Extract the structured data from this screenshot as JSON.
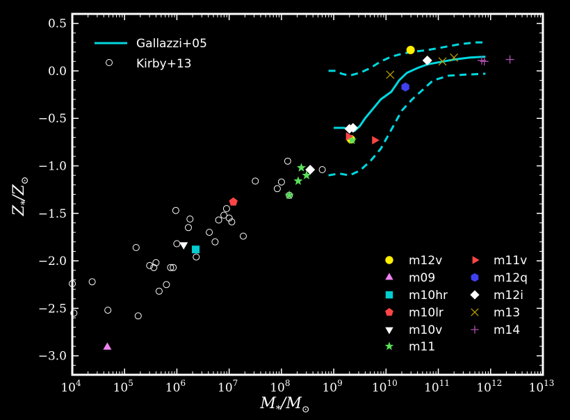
{
  "chart_data": {
    "type": "scatter",
    "xlabel_main": "M",
    "xlabel_sub": "*",
    "xlabel_slash": "/M",
    "xlabel_sun": "⊙",
    "ylabel_main": "Z",
    "ylabel_sub": "*",
    "ylabel_slash": "/Z",
    "ylabel_sun": "⊙",
    "x_scale": "log",
    "xlim": [
      10000.0,
      10000000000000.0
    ],
    "ylim": [
      -3.2,
      0.6
    ],
    "x_ticks": [
      {
        "exp": 4,
        "base": "10",
        "sup": "4"
      },
      {
        "exp": 5,
        "base": "10",
        "sup": "5"
      },
      {
        "exp": 6,
        "base": "10",
        "sup": "6"
      },
      {
        "exp": 7,
        "base": "10",
        "sup": "7"
      },
      {
        "exp": 8,
        "base": "10",
        "sup": "8"
      },
      {
        "exp": 9,
        "base": "10",
        "sup": "9"
      },
      {
        "exp": 10,
        "base": "10",
        "sup": "10"
      },
      {
        "exp": 11,
        "base": "10",
        "sup": "11"
      },
      {
        "exp": 12,
        "base": "10",
        "sup": "12"
      },
      {
        "exp": 13,
        "base": "10",
        "sup": "13"
      }
    ],
    "y_ticks": [
      {
        "v": 0.5,
        "label": "0.5"
      },
      {
        "v": 0.0,
        "label": "0.0"
      },
      {
        "v": -0.5,
        "label": "−0.5"
      },
      {
        "v": -1.0,
        "label": "−1.0"
      },
      {
        "v": -1.5,
        "label": "−1.5"
      },
      {
        "v": -2.0,
        "label": "−2.0"
      },
      {
        "v": -2.5,
        "label": "−2.5"
      },
      {
        "v": -3.0,
        "label": "−3.0"
      }
    ],
    "grid": false,
    "gallazzi": {
      "name": "Gallazzi+05",
      "color": "#00d8e0",
      "median": [
        [
          9.0,
          -0.6
        ],
        [
          9.2,
          -0.6
        ],
        [
          9.3,
          -0.62
        ],
        [
          9.4,
          -0.63
        ],
        [
          9.5,
          -0.58
        ],
        [
          9.6,
          -0.5
        ],
        [
          9.75,
          -0.4
        ],
        [
          9.9,
          -0.3
        ],
        [
          10.1,
          -0.22
        ],
        [
          10.25,
          -0.1
        ],
        [
          10.4,
          -0.02
        ],
        [
          10.6,
          0.03
        ],
        [
          10.8,
          0.07
        ],
        [
          11.0,
          0.09
        ],
        [
          11.3,
          0.12
        ],
        [
          11.6,
          0.14
        ],
        [
          11.9,
          0.15
        ]
      ],
      "upper": [
        [
          8.9,
          0.0
        ],
        [
          9.05,
          0.0
        ],
        [
          9.15,
          -0.03
        ],
        [
          9.3,
          -0.05
        ],
        [
          9.5,
          -0.02
        ],
        [
          9.7,
          0.03
        ],
        [
          9.9,
          0.1
        ],
        [
          10.1,
          0.15
        ],
        [
          10.3,
          0.18
        ],
        [
          10.5,
          0.2
        ],
        [
          10.8,
          0.22
        ],
        [
          11.1,
          0.25
        ],
        [
          11.4,
          0.28
        ],
        [
          11.7,
          0.3
        ],
        [
          11.9,
          0.3
        ]
      ],
      "lower": [
        [
          8.9,
          -1.1
        ],
        [
          9.1,
          -1.08
        ],
        [
          9.3,
          -1.1
        ],
        [
          9.5,
          -1.05
        ],
        [
          9.7,
          -0.95
        ],
        [
          9.9,
          -0.82
        ],
        [
          10.1,
          -0.62
        ],
        [
          10.3,
          -0.42
        ],
        [
          10.5,
          -0.3
        ],
        [
          10.7,
          -0.2
        ],
        [
          10.9,
          -0.1
        ],
        [
          11.2,
          -0.05
        ],
        [
          11.5,
          -0.04
        ],
        [
          11.9,
          -0.03
        ]
      ]
    },
    "kirby": {
      "name": "Kirby+13",
      "points": [
        [
          4.0,
          -2.24
        ],
        [
          4.03,
          -2.55
        ],
        [
          4.38,
          -2.22
        ],
        [
          4.68,
          -2.52
        ],
        [
          5.22,
          -1.86
        ],
        [
          5.26,
          -2.58
        ],
        [
          5.48,
          -2.05
        ],
        [
          5.56,
          -2.07
        ],
        [
          5.6,
          -2.02
        ],
        [
          5.66,
          -2.32
        ],
        [
          5.8,
          -2.25
        ],
        [
          5.88,
          -2.07
        ],
        [
          5.93,
          -2.07
        ],
        [
          5.98,
          -1.47
        ],
        [
          6.0,
          -1.82
        ],
        [
          6.22,
          -1.65
        ],
        [
          6.25,
          -1.56
        ],
        [
          6.37,
          -1.96
        ],
        [
          6.62,
          -1.7
        ],
        [
          6.73,
          -1.8
        ],
        [
          6.8,
          -1.57
        ],
        [
          6.9,
          -1.52
        ],
        [
          6.95,
          -1.45
        ],
        [
          7.0,
          -1.55
        ],
        [
          7.05,
          -1.59
        ],
        [
          7.27,
          -1.74
        ],
        [
          7.5,
          -1.16
        ],
        [
          7.92,
          -1.24
        ],
        [
          8.0,
          -1.17
        ],
        [
          8.12,
          -0.95
        ],
        [
          8.15,
          -1.31
        ],
        [
          8.78,
          -1.04
        ]
      ]
    },
    "sims": [
      {
        "label": "m12v",
        "marker": "circle",
        "color": "#ffef00",
        "points": [
          [
            10.47,
            0.22
          ],
          [
            9.33,
            -0.72
          ]
        ]
      },
      {
        "label": "m09",
        "marker": "triangle-up",
        "color": "#ee82ee",
        "points": [
          [
            4.67,
            -2.91
          ]
        ]
      },
      {
        "label": "m10hr",
        "marker": "square",
        "color": "#00ced1",
        "points": [
          [
            6.36,
            -1.88
          ]
        ]
      },
      {
        "label": "m10lr",
        "marker": "pentagon",
        "color": "#ff4545",
        "points": [
          [
            7.08,
            -1.38
          ]
        ]
      },
      {
        "label": "m10v",
        "marker": "triangle-down",
        "color": "#ffffff",
        "points": [
          [
            6.13,
            -1.83
          ]
        ]
      },
      {
        "label": "m11",
        "marker": "star",
        "color": "#58e058",
        "points": [
          [
            8.15,
            -1.31
          ],
          [
            8.32,
            -1.16
          ],
          [
            8.38,
            -1.02
          ],
          [
            8.48,
            -1.1
          ],
          [
            9.35,
            -0.73
          ]
        ]
      },
      {
        "label": "m11v",
        "marker": "triangle-right",
        "color": "#ff4545",
        "points": [
          [
            9.28,
            -0.69
          ],
          [
            9.78,
            -0.73
          ]
        ]
      },
      {
        "label": "m12q",
        "marker": "hexagon",
        "color": "#4040f0",
        "points": [
          [
            10.37,
            -0.17
          ]
        ]
      },
      {
        "label": "m12i",
        "marker": "diamond",
        "color": "#ffffff",
        "points": [
          [
            10.79,
            0.11
          ],
          [
            9.3,
            -0.61
          ],
          [
            9.37,
            -0.6
          ],
          [
            8.55,
            -1.04
          ]
        ]
      },
      {
        "label": "m13",
        "marker": "x",
        "color": "#b8a000",
        "points": [
          [
            10.08,
            -0.04
          ],
          [
            11.08,
            0.1
          ],
          [
            11.3,
            0.14
          ]
        ]
      },
      {
        "label": "m14",
        "marker": "plus",
        "color": "#b050b0",
        "points": [
          [
            11.83,
            0.11
          ],
          [
            11.88,
            0.1
          ],
          [
            12.37,
            0.12
          ]
        ]
      }
    ]
  }
}
